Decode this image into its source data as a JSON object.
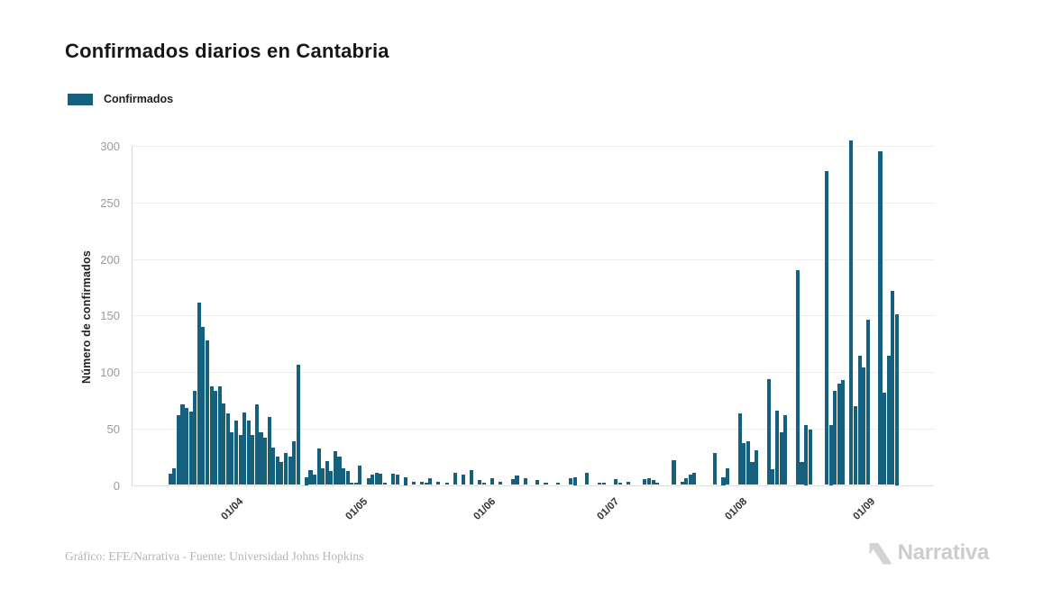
{
  "header": {
    "title": "Confirmados diarios en Cantabria"
  },
  "legend": {
    "label": "Confirmados",
    "swatch_color": "#15607C"
  },
  "footer": {
    "credit": "Gráfico: EFE/Narrativa - Fuente: Universidad Johns Hopkins",
    "brand": "Narrativa"
  },
  "chart_data": {
    "type": "bar",
    "title": "Confirmados diarios en Cantabria",
    "series_name": "Confirmados",
    "xlabel": "",
    "ylabel": "Número de confirmados",
    "ylim": [
      0,
      300
    ],
    "yticks": [
      0,
      50,
      100,
      150,
      200,
      250,
      300
    ],
    "xticks": [
      "01/04",
      "01/05",
      "01/06",
      "01/07",
      "01/08",
      "01/09"
    ],
    "grid": true,
    "legend_position": "top-left",
    "bar_color": "#15607C",
    "start_date": "2020-03-16",
    "frequency": "daily",
    "values": [
      10,
      15,
      62,
      71,
      68,
      65,
      83,
      161,
      140,
      128,
      87,
      83,
      87,
      72,
      63,
      47,
      57,
      44,
      64,
      57,
      44,
      71,
      47,
      42,
      60,
      33,
      25,
      20,
      28,
      25,
      39,
      106,
      0,
      7,
      13,
      9,
      32,
      15,
      21,
      12,
      30,
      25,
      15,
      12,
      2,
      2,
      17,
      0,
      6,
      9,
      11,
      10,
      2,
      0,
      10,
      9,
      0,
      7,
      0,
      3,
      0,
      3,
      2,
      6,
      0,
      3,
      0,
      2,
      0,
      11,
      0,
      9,
      0,
      13,
      0,
      4,
      2,
      0,
      6,
      0,
      3,
      0,
      0,
      5,
      8,
      0,
      6,
      0,
      0,
      4,
      0,
      2,
      0,
      0,
      2,
      0,
      0,
      6,
      7,
      0,
      0,
      11,
      0,
      0,
      2,
      2,
      0,
      0,
      5,
      2,
      0,
      3,
      0,
      0,
      0,
      5,
      6,
      4,
      2,
      0,
      0,
      0,
      22,
      0,
      3,
      6,
      9,
      11,
      0,
      0,
      0,
      0,
      28,
      0,
      7,
      15,
      0,
      0,
      63,
      37,
      39,
      20,
      31,
      0,
      0,
      94,
      14,
      66,
      47,
      62,
      0,
      0,
      190,
      20,
      53,
      49,
      0,
      0,
      0,
      278,
      53,
      83,
      90,
      93,
      0,
      305,
      70,
      114,
      104,
      146,
      0,
      0,
      295,
      82,
      114,
      172,
      151
    ]
  }
}
